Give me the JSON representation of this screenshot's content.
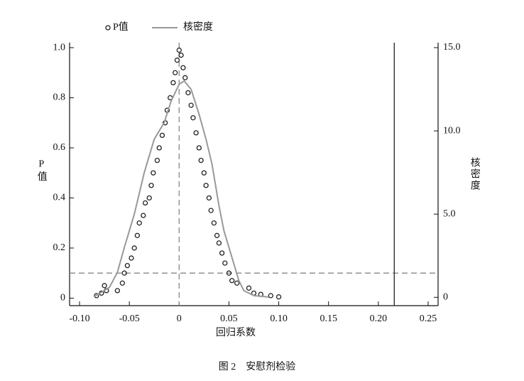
{
  "chart_data": {
    "type": "scatter",
    "xlabel": "回归系数",
    "ylabel": "P值",
    "y2label": "核密度",
    "caption": "图 2　安慰剂检验",
    "xlim": [
      -0.11,
      0.26
    ],
    "ylim": [
      -0.03,
      1.02
    ],
    "y2lim": [
      -0.5,
      15.3
    ],
    "xticks": [
      {
        "value": -0.1,
        "label": "-0.10"
      },
      -0.05,
      0,
      0.05,
      {
        "value": 0.1,
        "label": "0.10"
      },
      0.15,
      {
        "value": 0.2,
        "label": "0.20"
      },
      0.25
    ],
    "yticks": [
      0,
      0.2,
      0.4,
      0.6,
      0.8,
      {
        "value": 1,
        "label": "1.0"
      }
    ],
    "y2ticks": [
      0,
      {
        "value": 5,
        "label": "5.0"
      },
      {
        "value": 10,
        "label": "10.0"
      },
      {
        "value": 15,
        "label": "15.0"
      }
    ],
    "hlines": [
      {
        "value": 0.1,
        "style": "dashed",
        "color": "#888888"
      }
    ],
    "vlines": [
      {
        "value": 0,
        "style": "dashed",
        "color": "#888888"
      },
      {
        "value": 0.216,
        "style": "solid",
        "color": "#222222"
      }
    ],
    "series": [
      {
        "name": "P值",
        "type": "scatter",
        "color": "#222222",
        "x": [
          -0.083,
          -0.078,
          -0.073,
          -0.075,
          -0.062,
          -0.057,
          -0.055,
          -0.052,
          -0.048,
          -0.045,
          -0.042,
          -0.04,
          -0.036,
          -0.034,
          -0.03,
          -0.028,
          -0.026,
          -0.022,
          -0.02,
          -0.017,
          -0.014,
          -0.012,
          -0.009,
          -0.006,
          -0.004,
          -0.002,
          0,
          0.002,
          0.004,
          0.006,
          0.009,
          0.012,
          0.014,
          0.017,
          0.02,
          0.022,
          0.025,
          0.027,
          0.03,
          0.032,
          0.035,
          0.038,
          0.04,
          0.043,
          0.046,
          0.05,
          0.053,
          0.058,
          0.07,
          0.075,
          0.082,
          0.092,
          0.1
        ],
        "values": [
          0.01,
          0.02,
          0.03,
          0.05,
          0.03,
          0.06,
          0.1,
          0.13,
          0.16,
          0.2,
          0.25,
          0.3,
          0.33,
          0.38,
          0.4,
          0.45,
          0.5,
          0.55,
          0.6,
          0.65,
          0.7,
          0.75,
          0.8,
          0.86,
          0.9,
          0.95,
          0.99,
          0.97,
          0.92,
          0.88,
          0.82,
          0.77,
          0.72,
          0.66,
          0.6,
          0.55,
          0.5,
          0.45,
          0.4,
          0.35,
          0.3,
          0.25,
          0.22,
          0.18,
          0.14,
          0.1,
          0.07,
          0.06,
          0.04,
          0.02,
          0.015,
          0.01,
          0.005
        ]
      },
      {
        "name": "核密度",
        "type": "line",
        "axis": "y2",
        "color": "#999999",
        "x": [
          -0.085,
          -0.07,
          -0.062,
          -0.055,
          -0.045,
          -0.035,
          -0.025,
          -0.015,
          -0.008,
          0,
          0.005,
          0.012,
          0.02,
          0.027,
          0.033,
          0.04,
          0.045,
          0.05,
          0.055,
          0.06,
          0.065,
          0.075,
          0.09
        ],
        "values": [
          0.05,
          0.6,
          1.5,
          3,
          5,
          7.5,
          9.5,
          10.5,
          11.8,
          12.8,
          13,
          12.5,
          11,
          9.5,
          8,
          5.5,
          4,
          3,
          2,
          1,
          0.4,
          0.1,
          0.02
        ]
      }
    ]
  }
}
